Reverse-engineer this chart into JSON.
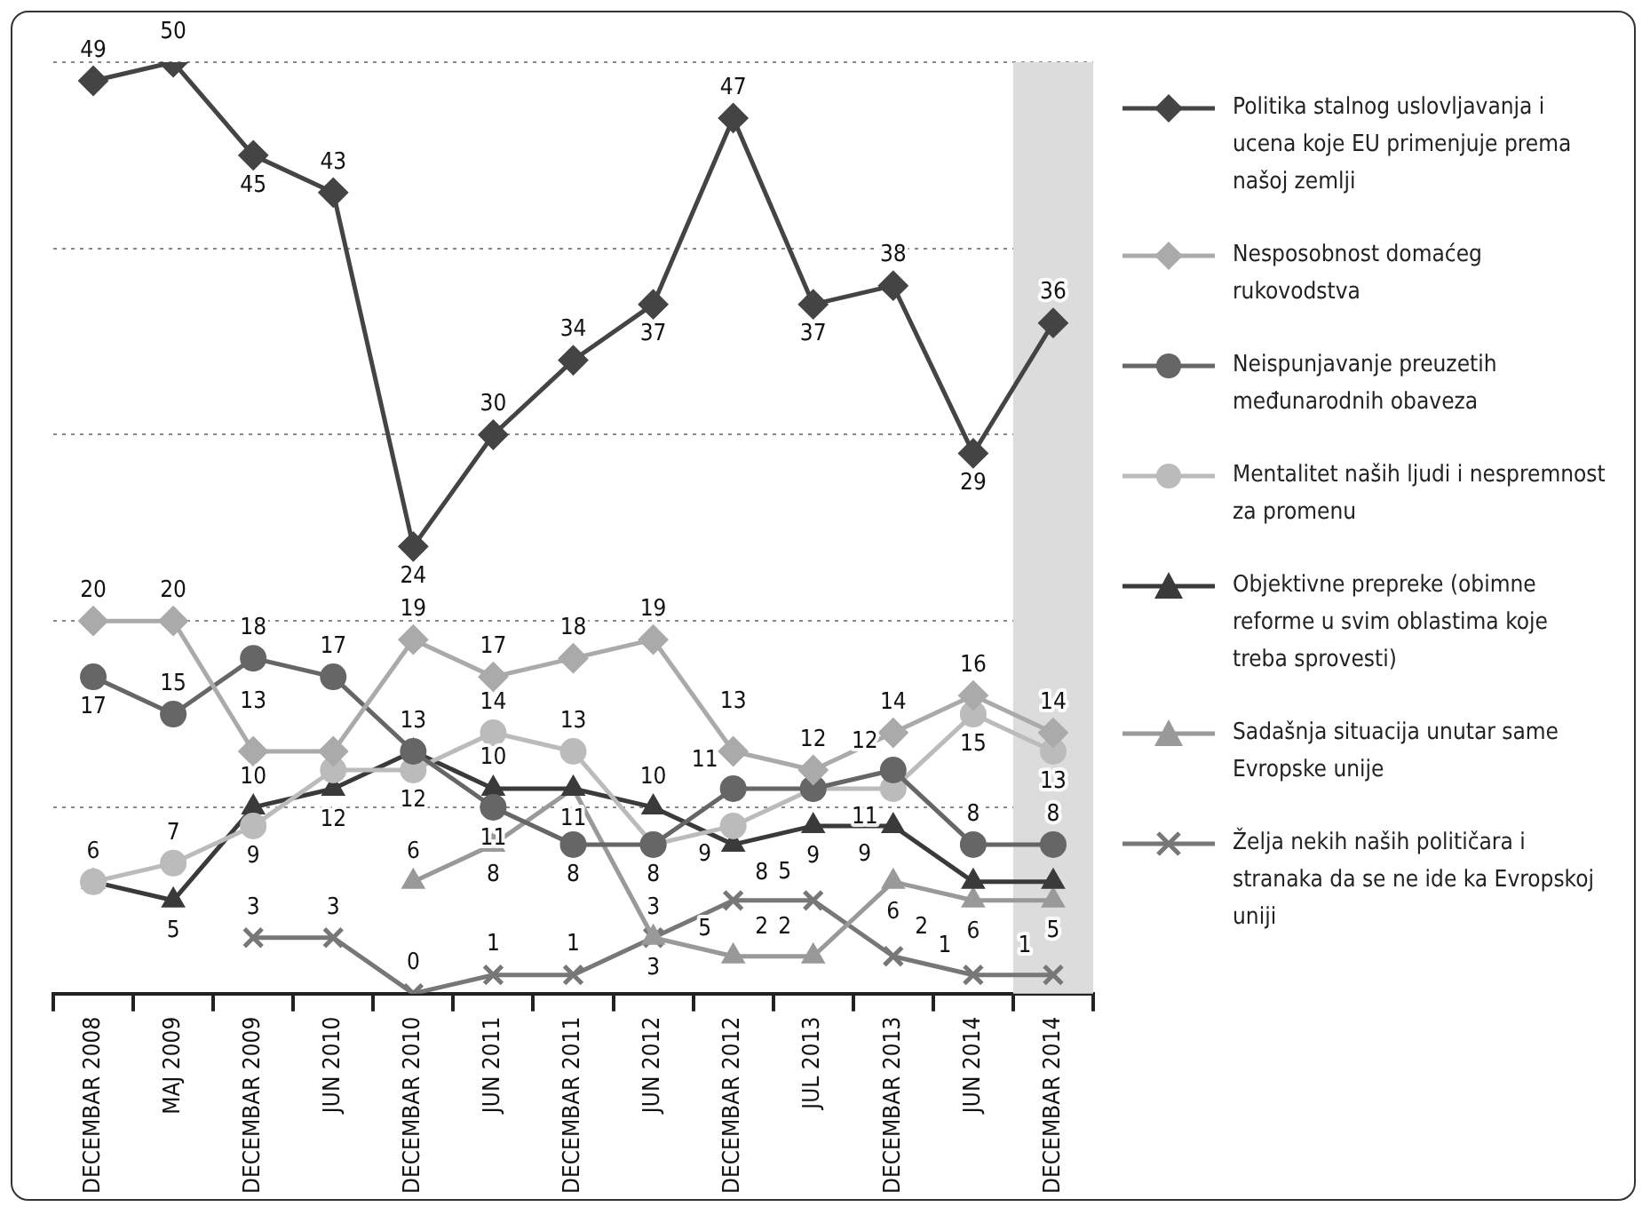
{
  "chart_data": {
    "type": "line",
    "categories": [
      "DECEMBAR 2008",
      "MAJ 2009",
      "DECEMBAR 2009",
      "JUN 2010",
      "DECEMBAR 2010",
      "JUN 2011",
      "DECEMBAR 2011",
      "JUN 2012",
      "DECEMBAR 2012",
      "JUL 2013",
      "DECEMBAR 2013",
      "JUN 2014",
      "DECEMBAR 2014"
    ],
    "ylim": [
      0,
      50
    ],
    "yticks": [
      {
        "value": 10,
        "label": null
      },
      {
        "value": 20,
        "label": null
      },
      {
        "value": 30,
        "label": null
      },
      {
        "value": 40,
        "label": null
      },
      {
        "value": 50,
        "label": null
      }
    ],
    "grid": "y",
    "tick_labels": "x",
    "legend": "right",
    "bands": [
      {
        "axis": "x",
        "from": "DECEMBAR 2014",
        "to": "DECEMBAR 2014",
        "color": "#dcdcdc"
      }
    ],
    "series": [
      {
        "name": "Politika stalnog uslovljavanja i ucena koje EU primenjuje prema našoj zemlji",
        "color": "#444444",
        "marker": "diamond",
        "values": [
          49,
          50,
          45,
          43,
          24,
          30,
          34,
          37,
          47,
          37,
          38,
          29,
          36
        ],
        "value_labels": [
          "49",
          "50",
          "45",
          "43",
          "24",
          "30",
          "34",
          "37",
          "47",
          "37",
          "38",
          "29",
          "36"
        ]
      },
      {
        "name": "Nesposobnost domaćeg rukovodstva",
        "color": "#aaaaaa",
        "marker": "diamond",
        "values": [
          20,
          20,
          13,
          13,
          19,
          17,
          18,
          19,
          13,
          12,
          14,
          16,
          14
        ],
        "value_labels": [
          "20",
          "20",
          "13",
          null,
          "19",
          "17",
          "18",
          "19",
          "13",
          "12",
          "14",
          "16",
          "14"
        ]
      },
      {
        "name": "Neispunjavanje preuzetih međunarodnih obaveza",
        "color": "#666666",
        "marker": "circle",
        "values": [
          17,
          15,
          18,
          17,
          13,
          10,
          8,
          8,
          11,
          11,
          12,
          8,
          8
        ],
        "value_labels": [
          "17",
          "15",
          "18",
          "17",
          null,
          "10",
          "8",
          null,
          "11",
          null,
          "12",
          "8",
          "8"
        ]
      },
      {
        "name": "Mentalitet naših ljudi i nespremnost za promenu",
        "color": "#bbbbbb",
        "marker": "circle",
        "values": [
          6,
          7,
          9,
          12,
          12,
          14,
          13,
          8,
          9,
          11,
          11,
          15,
          13
        ],
        "value_labels": [
          "6",
          "7",
          "9",
          "12",
          "12",
          "14",
          "13",
          "8",
          "9",
          null,
          "11",
          "15",
          "13"
        ]
      },
      {
        "name": "Objektivne prepreke (obimne reforme u svim oblastima koje treba sprovesti)",
        "color": "#3a3a3a",
        "marker": "triangle",
        "values": [
          6,
          5,
          10,
          11,
          13,
          11,
          11,
          10,
          8,
          9,
          9,
          6,
          6
        ],
        "value_labels": [
          null,
          "5",
          "10",
          null,
          "13",
          "11",
          null,
          "10",
          "8",
          "9",
          "9",
          "6",
          null
        ]
      },
      {
        "name": "Sadašnja situacija unutar same Evropske unije",
        "color": "#999999",
        "marker": "triangle",
        "values": [
          null,
          null,
          null,
          null,
          6,
          8,
          11,
          3,
          2,
          2,
          6,
          5,
          5
        ],
        "value_labels": [
          null,
          null,
          null,
          null,
          "6",
          "8",
          "11",
          "3",
          "2",
          "2",
          "6",
          null,
          "5"
        ]
      },
      {
        "name": "Želja nekih naših političara i stranaka da se ne ide ka Evropskoj uniji",
        "color": "#777777",
        "marker": "cross",
        "values": [
          null,
          null,
          3,
          3,
          0,
          1,
          1,
          3,
          5,
          5,
          2,
          1,
          1
        ],
        "value_labels": [
          null,
          null,
          "3",
          "3",
          "0",
          "1",
          "1",
          "3",
          "5",
          "5",
          "2",
          "1",
          "1"
        ]
      }
    ]
  }
}
